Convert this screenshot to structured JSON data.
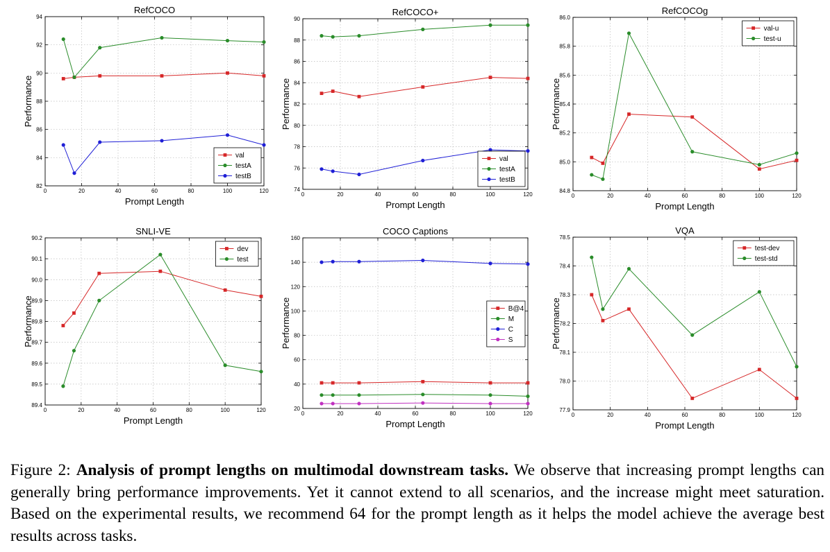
{
  "x_label": "Prompt Length",
  "y_label": "Performance",
  "chart_data": [
    {
      "type": "line",
      "title": "RefCOCO",
      "xlim": [
        0,
        120
      ],
      "ylim": [
        82,
        94
      ],
      "xticks": [
        0,
        20,
        40,
        60,
        80,
        100,
        120
      ],
      "yticks": [
        82,
        84,
        86,
        88,
        90,
        92,
        94
      ],
      "ytick_decimals": 0,
      "grid": true,
      "legend_position": "bottom-right",
      "x": [
        10,
        16,
        30,
        64,
        100,
        120
      ],
      "series": [
        {
          "name": "val",
          "color": "#d62728",
          "marker": "square",
          "values": [
            89.6,
            89.7,
            89.8,
            89.8,
            90.0,
            89.8
          ]
        },
        {
          "name": "testA",
          "color": "#2a8c2a",
          "marker": "circle",
          "values": [
            92.4,
            89.7,
            91.8,
            92.5,
            92.3,
            92.2
          ]
        },
        {
          "name": "testB",
          "color": "#1f1fd6",
          "marker": "circle",
          "values": [
            84.9,
            82.9,
            85.1,
            85.2,
            85.6,
            84.9
          ]
        }
      ]
    },
    {
      "type": "line",
      "title": "RefCOCO+",
      "xlim": [
        0,
        120
      ],
      "ylim": [
        74,
        90
      ],
      "xticks": [
        0,
        20,
        40,
        60,
        80,
        100,
        120
      ],
      "yticks": [
        74,
        76,
        78,
        80,
        82,
        84,
        86,
        88,
        90
      ],
      "ytick_decimals": 0,
      "grid": true,
      "legend_position": "bottom-right",
      "x": [
        10,
        16,
        30,
        64,
        100,
        120
      ],
      "series": [
        {
          "name": "val",
          "color": "#d62728",
          "marker": "square",
          "values": [
            83.0,
            83.2,
            82.7,
            83.6,
            84.5,
            84.4
          ]
        },
        {
          "name": "testA",
          "color": "#2a8c2a",
          "marker": "circle",
          "values": [
            88.4,
            88.3,
            88.4,
            89.0,
            89.4,
            89.4
          ]
        },
        {
          "name": "testB",
          "color": "#1f1fd6",
          "marker": "circle",
          "values": [
            75.9,
            75.7,
            75.4,
            76.7,
            77.7,
            77.6
          ]
        }
      ]
    },
    {
      "type": "line",
      "title": "RefCOCOg",
      "xlim": [
        0,
        120
      ],
      "ylim": [
        84.8,
        86.0
      ],
      "xticks": [
        0,
        20,
        40,
        60,
        80,
        100,
        120
      ],
      "yticks": [
        84.8,
        85.0,
        85.2,
        85.4,
        85.6,
        85.8,
        86.0
      ],
      "ytick_decimals": 1,
      "grid": true,
      "legend_position": "top-right",
      "x": [
        10,
        16,
        30,
        64,
        100,
        120
      ],
      "series": [
        {
          "name": "val-u",
          "color": "#d62728",
          "marker": "square",
          "values": [
            85.03,
            84.99,
            85.33,
            85.31,
            84.95,
            85.01
          ]
        },
        {
          "name": "test-u",
          "color": "#2a8c2a",
          "marker": "circle",
          "values": [
            84.91,
            84.88,
            85.89,
            85.07,
            84.98,
            85.06
          ]
        }
      ]
    },
    {
      "type": "line",
      "title": "SNLI-VE",
      "xlim": [
        0,
        120
      ],
      "ylim": [
        89.4,
        90.2
      ],
      "xticks": [
        0,
        20,
        40,
        60,
        80,
        100,
        120
      ],
      "yticks": [
        89.4,
        89.5,
        89.6,
        89.7,
        89.8,
        89.9,
        90.0,
        90.1,
        90.2
      ],
      "ytick_decimals": 1,
      "grid": true,
      "legend_position": "top-right",
      "x": [
        10,
        16,
        30,
        64,
        100,
        120
      ],
      "series": [
        {
          "name": "dev",
          "color": "#d62728",
          "marker": "square",
          "values": [
            89.78,
            89.84,
            90.03,
            90.04,
            89.95,
            89.92
          ]
        },
        {
          "name": "test",
          "color": "#2a8c2a",
          "marker": "circle",
          "values": [
            89.49,
            89.66,
            89.9,
            90.12,
            89.59,
            89.56
          ]
        }
      ]
    },
    {
      "type": "line",
      "title": "COCO Captions",
      "xlim": [
        0,
        120
      ],
      "ylim": [
        20,
        160
      ],
      "xticks": [
        0,
        20,
        40,
        60,
        80,
        100,
        120
      ],
      "yticks": [
        20,
        40,
        60,
        80,
        100,
        120,
        140,
        160
      ],
      "ytick_decimals": 0,
      "grid": true,
      "legend_position": "center-right",
      "x": [
        10,
        16,
        30,
        64,
        100,
        120
      ],
      "series": [
        {
          "name": "B@4",
          "color": "#d62728",
          "marker": "square",
          "values": [
            41,
            41,
            41,
            42,
            41,
            41
          ]
        },
        {
          "name": "M",
          "color": "#2a8c2a",
          "marker": "circle",
          "values": [
            31,
            31,
            31,
            31.5,
            31,
            30
          ]
        },
        {
          "name": "C",
          "color": "#1f1fd6",
          "marker": "circle",
          "values": [
            140,
            140.5,
            140.5,
            141.5,
            139,
            138.5
          ]
        },
        {
          "name": "S",
          "color": "#c030c0",
          "marker": "circle",
          "values": [
            24,
            24,
            24,
            24.5,
            24,
            24
          ]
        }
      ]
    },
    {
      "type": "line",
      "title": "VQA",
      "xlim": [
        0,
        120
      ],
      "ylim": [
        77.9,
        78.5
      ],
      "xticks": [
        0,
        20,
        40,
        60,
        80,
        100,
        120
      ],
      "yticks": [
        77.9,
        78.0,
        78.1,
        78.2,
        78.3,
        78.4,
        78.5
      ],
      "ytick_decimals": 1,
      "grid": true,
      "legend_position": "top-right",
      "x": [
        10,
        16,
        30,
        64,
        100,
        120
      ],
      "series": [
        {
          "name": "test-dev",
          "color": "#d62728",
          "marker": "square",
          "values": [
            78.3,
            78.21,
            78.25,
            77.94,
            78.04,
            77.94
          ]
        },
        {
          "name": "test-std",
          "color": "#2a8c2a",
          "marker": "circle",
          "values": [
            78.43,
            78.25,
            78.39,
            78.16,
            78.31,
            78.05
          ]
        }
      ]
    }
  ],
  "caption": {
    "label": "Figure 2: ",
    "bold": "Analysis of prompt lengths on multimodal downstream tasks.",
    "text": "  We observe that increasing prompt lengths can generally bring performance improvements. Yet it cannot extend to all scenarios, and the increase might meet saturation. Based on the experimental results, we recommend 64 for the prompt length as it helps the model achieve the average best results across tasks."
  }
}
